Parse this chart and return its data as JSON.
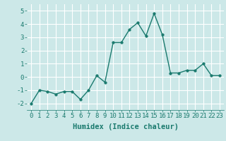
{
  "x": [
    0,
    1,
    2,
    3,
    4,
    5,
    6,
    7,
    8,
    9,
    10,
    11,
    12,
    13,
    14,
    15,
    16,
    17,
    18,
    19,
    20,
    21,
    22,
    23
  ],
  "y": [
    -2.0,
    -1.0,
    -1.1,
    -1.3,
    -1.1,
    -1.1,
    -1.7,
    -1.0,
    0.1,
    -0.4,
    2.6,
    2.6,
    3.6,
    4.1,
    3.1,
    4.8,
    3.2,
    0.3,
    0.3,
    0.5,
    0.5,
    1.0,
    0.1,
    0.1
  ],
  "line_color": "#1a7a6e",
  "marker_color": "#1a7a6e",
  "bg_color": "#cce8e8",
  "grid_color": "#ffffff",
  "axis_color": "#1a7a6e",
  "xlabel": "Humidex (Indice chaleur)",
  "ylim": [
    -2.5,
    5.5
  ],
  "xlim": [
    -0.5,
    23.5
  ],
  "yticks": [
    -2,
    -1,
    0,
    1,
    2,
    3,
    4,
    5
  ],
  "xticks": [
    0,
    1,
    2,
    3,
    4,
    5,
    6,
    7,
    8,
    9,
    10,
    11,
    12,
    13,
    14,
    15,
    16,
    17,
    18,
    19,
    20,
    21,
    22,
    23
  ],
  "tick_label_fontsize": 6.5,
  "xlabel_fontsize": 7.5,
  "line_width": 1.0,
  "marker_size": 2.5
}
